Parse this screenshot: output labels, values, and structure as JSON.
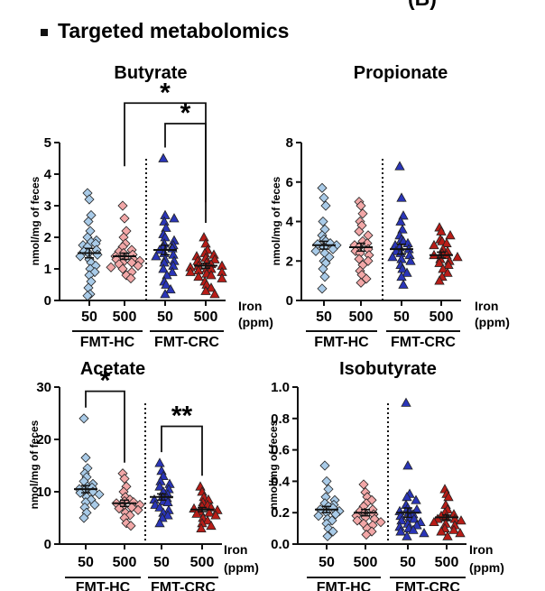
{
  "heading": "Targeted metabolomics",
  "panel_letter": "(B)",
  "legend_unit_label": [
    "Iron",
    "(ppm)"
  ],
  "ylabel": "nmol/mg of feces",
  "groups": [
    {
      "label": "FMT-HC",
      "categories": [
        "50",
        "500"
      ]
    },
    {
      "label": "FMT-CRC",
      "categories": [
        "50",
        "500"
      ]
    }
  ],
  "colors": {
    "FMT-HC 50": "#a9cbe8",
    "FMT-HC 500": "#f2a7a7",
    "FMT-CRC 50": "#2a35b8",
    "FMT-CRC 500": "#b81c17",
    "stroke": "#222222"
  },
  "chart_data": [
    {
      "type": "scatter",
      "title": "Butyrate",
      "ylabel": "nmol/mg of feces",
      "ylim": [
        0,
        5
      ],
      "yticks": [
        0,
        1,
        2,
        3,
        4,
        5
      ],
      "categories": [
        "FMT-HC 50",
        "FMT-HC 500",
        "FMT-CRC 50",
        "FMT-CRC 500"
      ],
      "means": [
        1.5,
        1.4,
        1.6,
        1.1
      ],
      "sem": [
        0.15,
        0.1,
        0.15,
        0.08
      ],
      "series": [
        {
          "name": "FMT-HC 50",
          "marker": "diamond",
          "values": [
            3.4,
            3.2,
            2.7,
            2.5,
            2.2,
            2.0,
            1.9,
            1.85,
            1.8,
            1.75,
            1.7,
            1.6,
            1.55,
            1.5,
            1.45,
            1.4,
            1.3,
            1.2,
            1.1,
            1.0,
            0.9,
            0.8,
            0.6,
            0.4,
            0.2,
            0.15
          ]
        },
        {
          "name": "FMT-HC 500",
          "marker": "diamond",
          "values": [
            3.0,
            2.6,
            2.2,
            2.0,
            1.8,
            1.7,
            1.6,
            1.55,
            1.5,
            1.45,
            1.4,
            1.35,
            1.3,
            1.3,
            1.25,
            1.2,
            1.2,
            1.15,
            1.1,
            1.05,
            1.0,
            0.9,
            0.8,
            0.7
          ]
        },
        {
          "name": "FMT-CRC 50",
          "marker": "triangle",
          "values": [
            4.5,
            2.7,
            2.6,
            2.5,
            2.3,
            2.1,
            2.0,
            1.9,
            1.8,
            1.75,
            1.7,
            1.65,
            1.6,
            1.5,
            1.45,
            1.4,
            1.3,
            1.25,
            1.2,
            1.1,
            1.0,
            0.9,
            0.8,
            0.6,
            0.5,
            0.35,
            0.2
          ]
        },
        {
          "name": "FMT-CRC 500",
          "marker": "triangle",
          "values": [
            2.0,
            1.8,
            1.6,
            1.5,
            1.45,
            1.4,
            1.35,
            1.3,
            1.25,
            1.2,
            1.15,
            1.1,
            1.1,
            1.05,
            1.0,
            1.0,
            0.95,
            0.9,
            0.9,
            0.85,
            0.8,
            0.75,
            0.7,
            0.6,
            0.5,
            0.4,
            0.3,
            0.2
          ]
        }
      ],
      "annotations": [
        {
          "text": "*",
          "from": 1,
          "to": 3,
          "level": 6.25
        },
        {
          "text": "*",
          "from": 2,
          "to": 3,
          "level": 5.6
        }
      ]
    },
    {
      "type": "scatter",
      "title": "Propionate",
      "ylabel": "nmol/mg of feces",
      "ylim": [
        0,
        8
      ],
      "yticks": [
        0,
        2,
        4,
        6,
        8
      ],
      "categories": [
        "FMT-HC 50",
        "FMT-HC 500",
        "FMT-CRC 50",
        "FMT-CRC 500"
      ],
      "means": [
        2.8,
        2.7,
        2.6,
        2.3
      ],
      "sem": [
        0.2,
        0.2,
        0.25,
        0.15
      ],
      "series": [
        {
          "name": "FMT-HC 50",
          "marker": "diamond",
          "values": [
            5.7,
            5.2,
            4.8,
            4.0,
            3.6,
            3.3,
            3.1,
            3.0,
            2.9,
            2.85,
            2.8,
            2.7,
            2.6,
            2.5,
            2.4,
            2.2,
            2.0,
            1.9,
            1.6,
            1.2,
            0.6
          ]
        },
        {
          "name": "FMT-HC 500",
          "marker": "diamond",
          "values": [
            5.0,
            4.8,
            4.4,
            4.0,
            3.8,
            3.5,
            3.3,
            3.0,
            2.9,
            2.8,
            2.7,
            2.6,
            2.5,
            2.4,
            2.3,
            2.1,
            2.0,
            1.8,
            1.5,
            1.3,
            1.1,
            0.9
          ]
        },
        {
          "name": "FMT-CRC 50",
          "marker": "triangle",
          "values": [
            6.8,
            5.2,
            4.3,
            4.0,
            3.6,
            3.3,
            3.1,
            3.0,
            2.9,
            2.8,
            2.7,
            2.6,
            2.5,
            2.4,
            2.3,
            2.2,
            2.1,
            2.0,
            1.8,
            1.6,
            1.4,
            1.2,
            0.8
          ]
        },
        {
          "name": "FMT-CRC 500",
          "marker": "triangle",
          "values": [
            3.7,
            3.5,
            3.3,
            3.1,
            3.0,
            2.9,
            2.8,
            2.6,
            2.5,
            2.4,
            2.3,
            2.3,
            2.2,
            2.1,
            2.0,
            1.9,
            1.8,
            1.6,
            1.4,
            1.2,
            1.0
          ]
        }
      ],
      "annotations": []
    },
    {
      "type": "scatter",
      "title": "Acetate",
      "ylabel": "nmol/mg of feces",
      "ylim": [
        0,
        30
      ],
      "yticks": [
        0,
        10,
        20,
        30
      ],
      "categories": [
        "FMT-HC 50",
        "FMT-HC 500",
        "FMT-CRC 50",
        "FMT-CRC 500"
      ],
      "means": [
        10.5,
        7.8,
        9.0,
        6.6
      ],
      "sem": [
        0.7,
        0.6,
        0.6,
        0.4
      ],
      "series": [
        {
          "name": "FMT-HC 50",
          "marker": "diamond",
          "values": [
            24.0,
            16.5,
            14.5,
            13.5,
            12.8,
            12.0,
            11.5,
            11.0,
            10.8,
            10.5,
            10.2,
            10.0,
            9.8,
            9.5,
            9.0,
            8.5,
            8.0,
            7.5,
            7.0,
            6.0,
            5.0
          ]
        },
        {
          "name": "FMT-HC 500",
          "marker": "diamond",
          "values": [
            13.5,
            12.5,
            11.0,
            10.0,
            9.0,
            8.5,
            8.2,
            8.0,
            7.8,
            7.5,
            7.2,
            7.0,
            6.8,
            6.5,
            6.0,
            5.5,
            5.0,
            4.0,
            3.5
          ]
        },
        {
          "name": "FMT-CRC 50",
          "marker": "triangle",
          "values": [
            15.5,
            14.0,
            13.0,
            12.0,
            11.5,
            11.0,
            10.5,
            10.0,
            9.5,
            9.0,
            8.8,
            8.5,
            8.2,
            8.0,
            7.5,
            7.0,
            6.5,
            6.0,
            5.5,
            5.0,
            4.0
          ]
        },
        {
          "name": "FMT-CRC 500",
          "marker": "triangle",
          "values": [
            11.0,
            10.0,
            9.0,
            8.5,
            8.0,
            7.5,
            7.2,
            7.0,
            6.8,
            6.5,
            6.2,
            6.0,
            5.8,
            5.5,
            5.0,
            4.5,
            4.0,
            3.5,
            3.0
          ]
        }
      ],
      "annotations": [
        {
          "text": "*",
          "from": 0,
          "to": 1,
          "level": 29.2
        },
        {
          "text": "**",
          "from": 2,
          "to": 3,
          "level": 22.5
        }
      ]
    },
    {
      "type": "scatter",
      "title": "Isobutyrate",
      "ylabel": "nmol/mg of feces",
      "ylim": [
        0,
        1.0
      ],
      "yticks": [
        0.0,
        0.2,
        0.4,
        0.6,
        0.8,
        1.0
      ],
      "tick_decimals": 1,
      "categories": [
        "FMT-HC 50",
        "FMT-HC 500",
        "FMT-CRC 50",
        "FMT-CRC 500"
      ],
      "means": [
        0.22,
        0.2,
        0.2,
        0.17
      ],
      "sem": [
        0.02,
        0.02,
        0.03,
        0.015
      ],
      "series": [
        {
          "name": "FMT-HC 50",
          "marker": "diamond",
          "values": [
            0.5,
            0.4,
            0.35,
            0.3,
            0.28,
            0.26,
            0.25,
            0.24,
            0.23,
            0.22,
            0.21,
            0.2,
            0.19,
            0.18,
            0.16,
            0.15,
            0.13,
            0.1,
            0.08,
            0.05
          ]
        },
        {
          "name": "FMT-HC 500",
          "marker": "diamond",
          "values": [
            0.38,
            0.33,
            0.3,
            0.28,
            0.26,
            0.24,
            0.22,
            0.21,
            0.2,
            0.19,
            0.18,
            0.17,
            0.16,
            0.15,
            0.14,
            0.13,
            0.12,
            0.1,
            0.08,
            0.06
          ]
        },
        {
          "name": "FMT-CRC 50",
          "marker": "triangle",
          "values": [
            0.9,
            0.5,
            0.32,
            0.3,
            0.28,
            0.25,
            0.23,
            0.22,
            0.21,
            0.2,
            0.19,
            0.18,
            0.17,
            0.16,
            0.15,
            0.14,
            0.13,
            0.12,
            0.11,
            0.1,
            0.09,
            0.08,
            0.07,
            0.05
          ]
        },
        {
          "name": "FMT-CRC 500",
          "marker": "triangle",
          "values": [
            0.35,
            0.32,
            0.3,
            0.25,
            0.22,
            0.2,
            0.19,
            0.18,
            0.17,
            0.16,
            0.16,
            0.15,
            0.14,
            0.13,
            0.12,
            0.1,
            0.09,
            0.08,
            0.07,
            0.05
          ]
        }
      ],
      "annotations": []
    }
  ]
}
